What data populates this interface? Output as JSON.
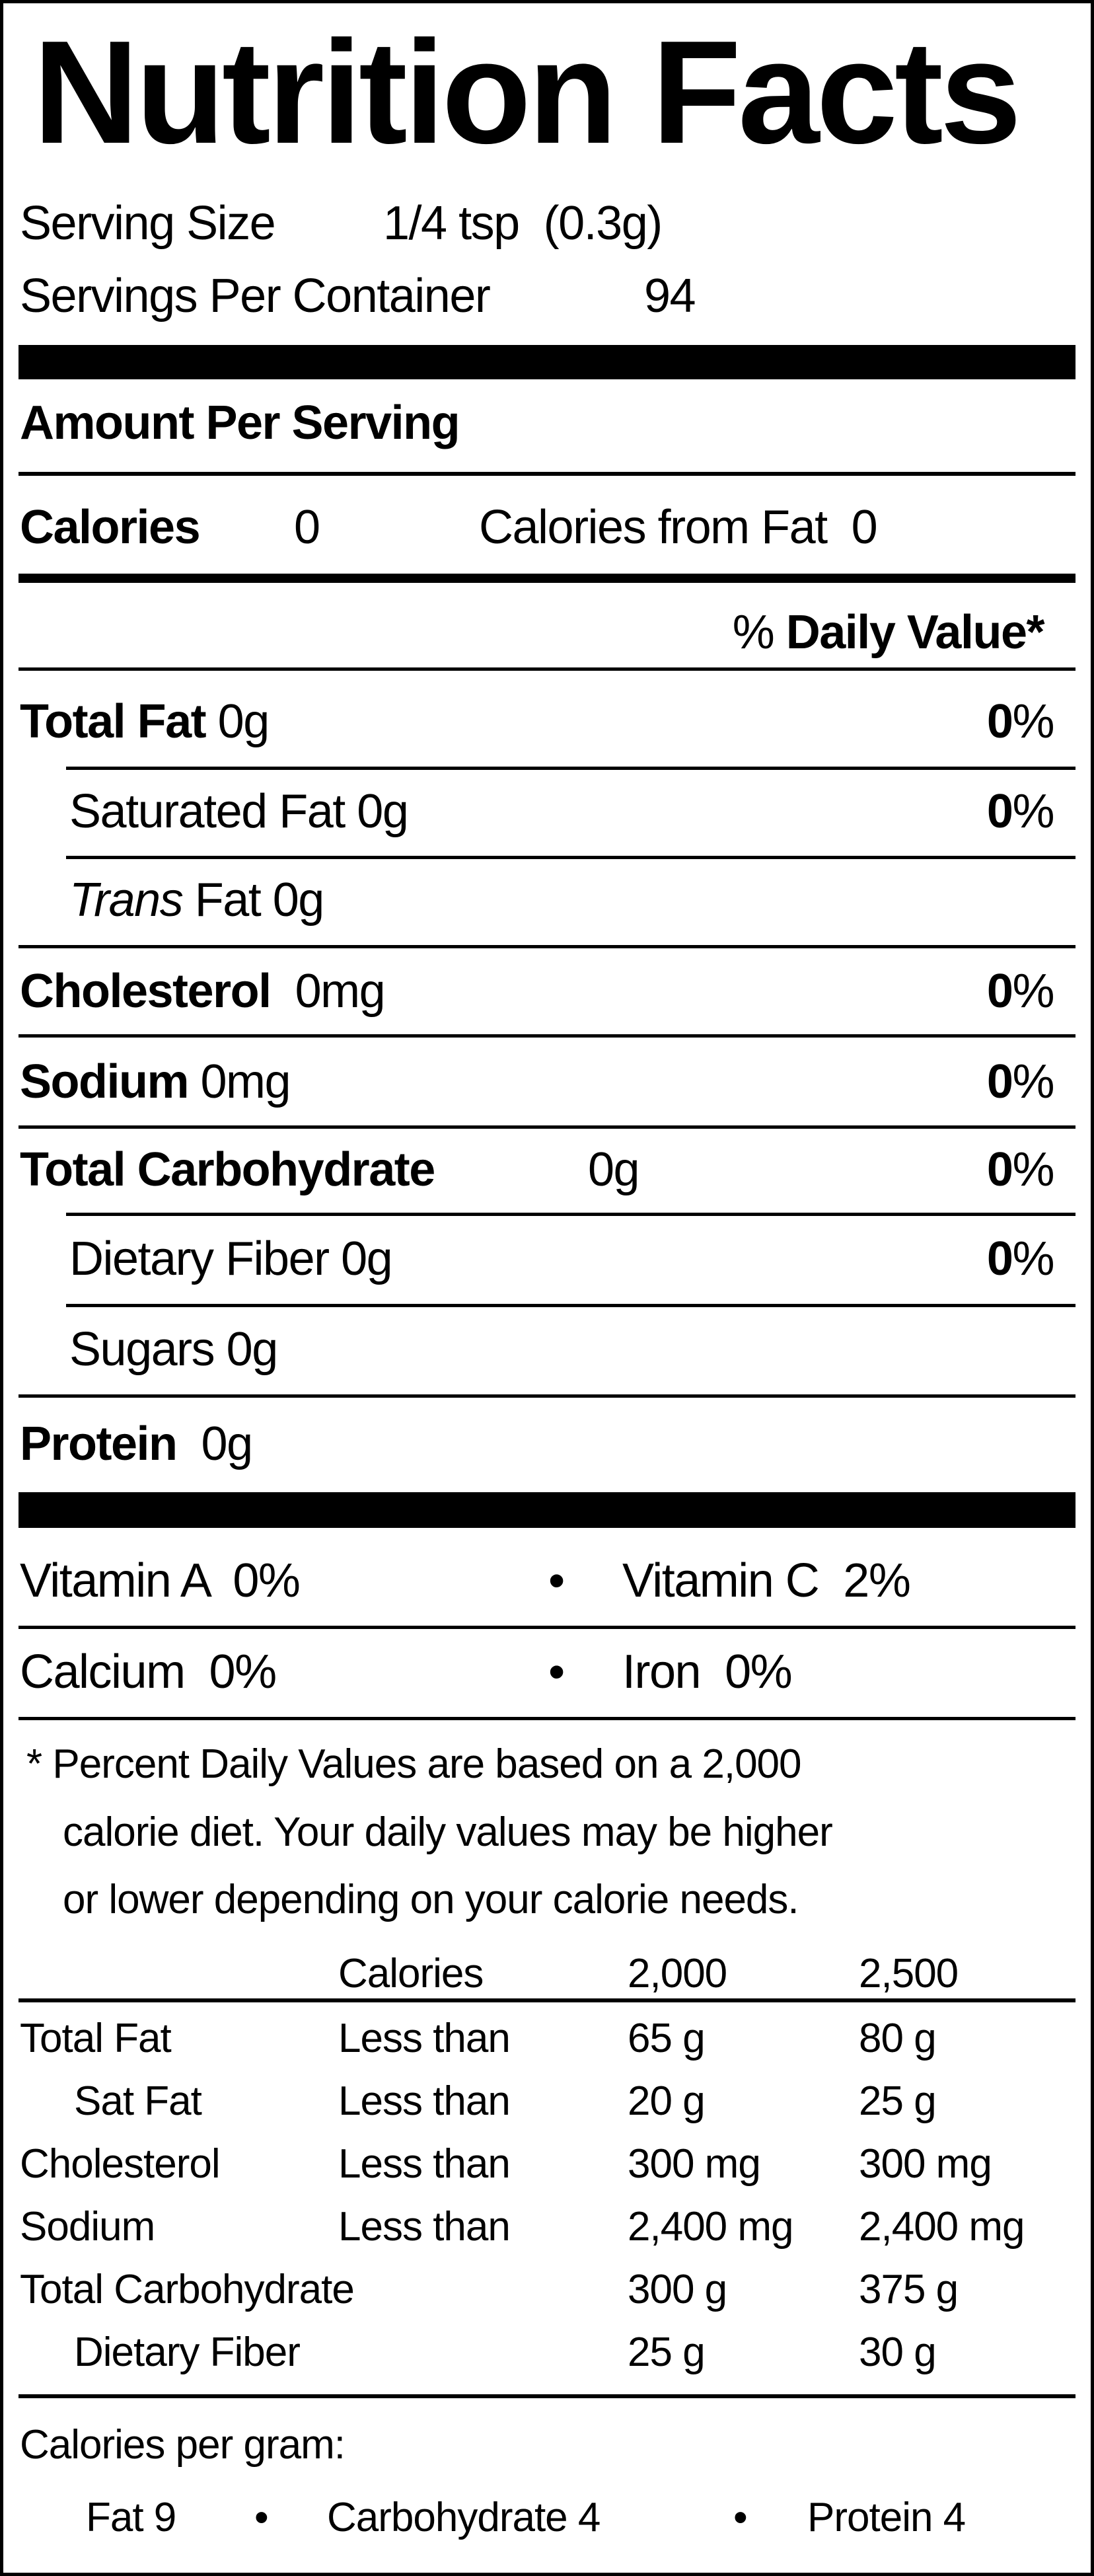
{
  "title": "Nutrition Facts",
  "serving_size_label": "Serving Size",
  "serving_size_value": "1/4 tsp  (0.3g)",
  "servings_per_container_label": "Servings Per Container",
  "servings_per_container_value": "94",
  "amount_per_serving": "Amount Per Serving",
  "calories_label": "Calories",
  "calories_value": "0",
  "calories_from_fat": "Calories from Fat  0",
  "daily_value_pct": "%",
  "daily_value_header": "Daily Value*",
  "nutrients": [
    {
      "label": "Total Fat",
      "amount": "0g",
      "dv": "0",
      "pct": "%"
    },
    {
      "label": "Saturated Fat",
      "amount": "0g",
      "dv": "0",
      "pct": "%"
    },
    {
      "label": "Trans",
      "label2": "Fat",
      "amount": "0g"
    },
    {
      "label": "Cholesterol",
      "amount": "0mg",
      "dv": "0",
      "pct": "%"
    },
    {
      "label": "Sodium",
      "amount": "0mg",
      "dv": "0",
      "pct": "%"
    },
    {
      "label": "Total Carbohydrate",
      "amount": "0g",
      "dv": "0",
      "pct": "%"
    },
    {
      "label": "Dietary Fiber",
      "amount": "0g",
      "dv": "0",
      "pct": "%"
    },
    {
      "label": "Sugars",
      "amount": "0g"
    },
    {
      "label": "Protein",
      "amount": "0g"
    }
  ],
  "vitamins": [
    {
      "left": "Vitamin A  0%",
      "right": "Vitamin C  2%"
    },
    {
      "left": "Calcium  0%",
      "right": "Iron  0%"
    }
  ],
  "bullet": "•",
  "footnote": [
    "* Percent Daily Values are based on a 2,000",
    "calorie diet. Your daily values may be higher",
    "or lower depending on your calorie needs."
  ],
  "dv_table": {
    "header": [
      "Calories",
      "2,000",
      "2,500"
    ],
    "rows": [
      [
        "Total Fat",
        "Less than",
        "65 g",
        "80 g"
      ],
      [
        "Sat Fat",
        "Less than",
        "20 g",
        "25 g"
      ],
      [
        "Cholesterol",
        "Less than",
        "300 mg",
        "300 mg"
      ],
      [
        "Sodium",
        "Less than",
        "2,400 mg",
        "2,400 mg"
      ],
      [
        "Total Carbohydrate",
        "",
        "300 g",
        "375 g"
      ],
      [
        "Dietary Fiber",
        "",
        "25 g",
        "30 g"
      ]
    ]
  },
  "calories_per_gram": {
    "label": "Calories per gram:",
    "items": [
      "Fat 9",
      "Carbohydrate 4",
      "Protein 4"
    ]
  }
}
